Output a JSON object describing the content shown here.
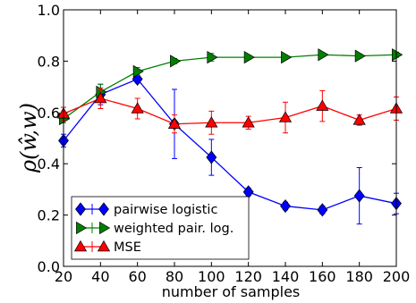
{
  "chart_data": {
    "type": "line",
    "xlabel": "number of samples",
    "ylabel": "ρ(ŵ,w)",
    "xlim": [
      20,
      200
    ],
    "ylim": [
      0.0,
      1.0
    ],
    "xticks": [
      20,
      40,
      60,
      80,
      100,
      120,
      140,
      160,
      180,
      200
    ],
    "yticks": [
      0.0,
      0.2,
      0.4,
      0.6,
      0.8,
      1.0
    ],
    "ytick_labels": [
      "0.0",
      "0.2",
      "0.4",
      "0.6",
      "0.8",
      "1.0"
    ],
    "grid": false,
    "legend_position": "lower-left",
    "series": [
      {
        "name": "pairwise logistic",
        "color": "#0000ff",
        "marker": "diamond",
        "x": [
          20,
          40,
          60,
          80,
          100,
          120,
          140,
          160,
          180,
          200
        ],
        "y": [
          0.49,
          0.67,
          0.73,
          0.555,
          0.425,
          0.29,
          0.235,
          0.22,
          0.275,
          0.245
        ],
        "err": [
          0.025,
          0.04,
          0.015,
          0.135,
          0.07,
          0.015,
          0.015,
          0.015,
          0.11,
          0.04
        ]
      },
      {
        "name": "weighted pair. log.",
        "color": "#008000",
        "marker": "triangle-right",
        "x": [
          20,
          40,
          60,
          80,
          100,
          120,
          140,
          160,
          180,
          200
        ],
        "y": [
          0.575,
          0.68,
          0.76,
          0.8,
          0.815,
          0.815,
          0.815,
          0.825,
          0.82,
          0.825
        ],
        "err": [
          0.015,
          0.03,
          0.015,
          0.01,
          0.015,
          0.008,
          0.008,
          0.008,
          0.008,
          0.01
        ]
      },
      {
        "name": "MSE",
        "color": "#ff0000",
        "marker": "triangle-up",
        "x": [
          20,
          40,
          60,
          80,
          100,
          120,
          140,
          160,
          180,
          200
        ],
        "y": [
          0.595,
          0.655,
          0.615,
          0.555,
          0.56,
          0.56,
          0.58,
          0.625,
          0.57,
          0.615
        ],
        "err": [
          0.025,
          0.04,
          0.04,
          0.035,
          0.045,
          0.025,
          0.06,
          0.06,
          0.02,
          0.045
        ]
      }
    ]
  }
}
